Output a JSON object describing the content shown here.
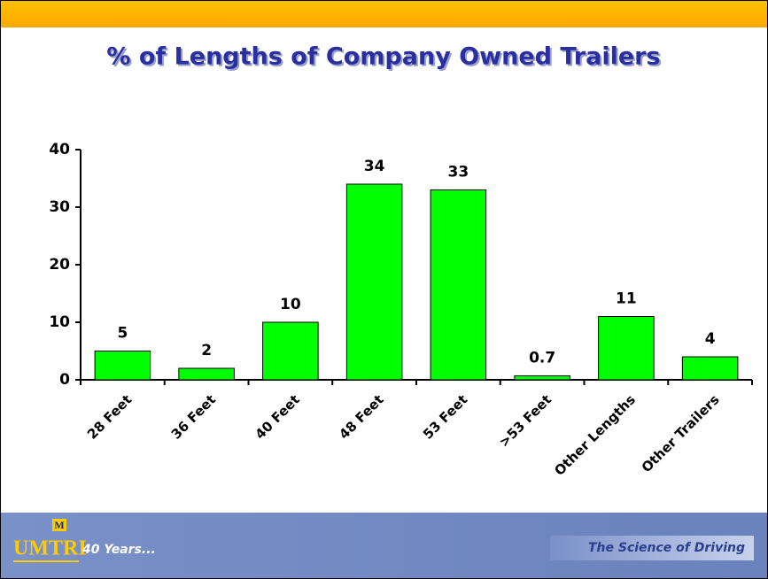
{
  "chart_data": {
    "type": "bar",
    "title": "% of Lengths of Company Owned Trailers",
    "categories": [
      "28 Feet",
      "36 Feet",
      "40 Feet",
      "48 Feet",
      "53 Feet",
      ">53 Feet",
      "Other Lengths",
      "Other Trailers"
    ],
    "values": [
      5,
      2,
      10,
      34,
      33,
      0.7,
      11,
      4
    ],
    "color": "#00ff00",
    "ylim": [
      0,
      40
    ],
    "yticks": [
      0,
      10,
      20,
      30,
      40
    ],
    "grid": false
  },
  "footer": {
    "logo_mark": "M",
    "logo": "UMTRI",
    "tagline": "40 Years...",
    "slogan": "The Science of Driving"
  }
}
